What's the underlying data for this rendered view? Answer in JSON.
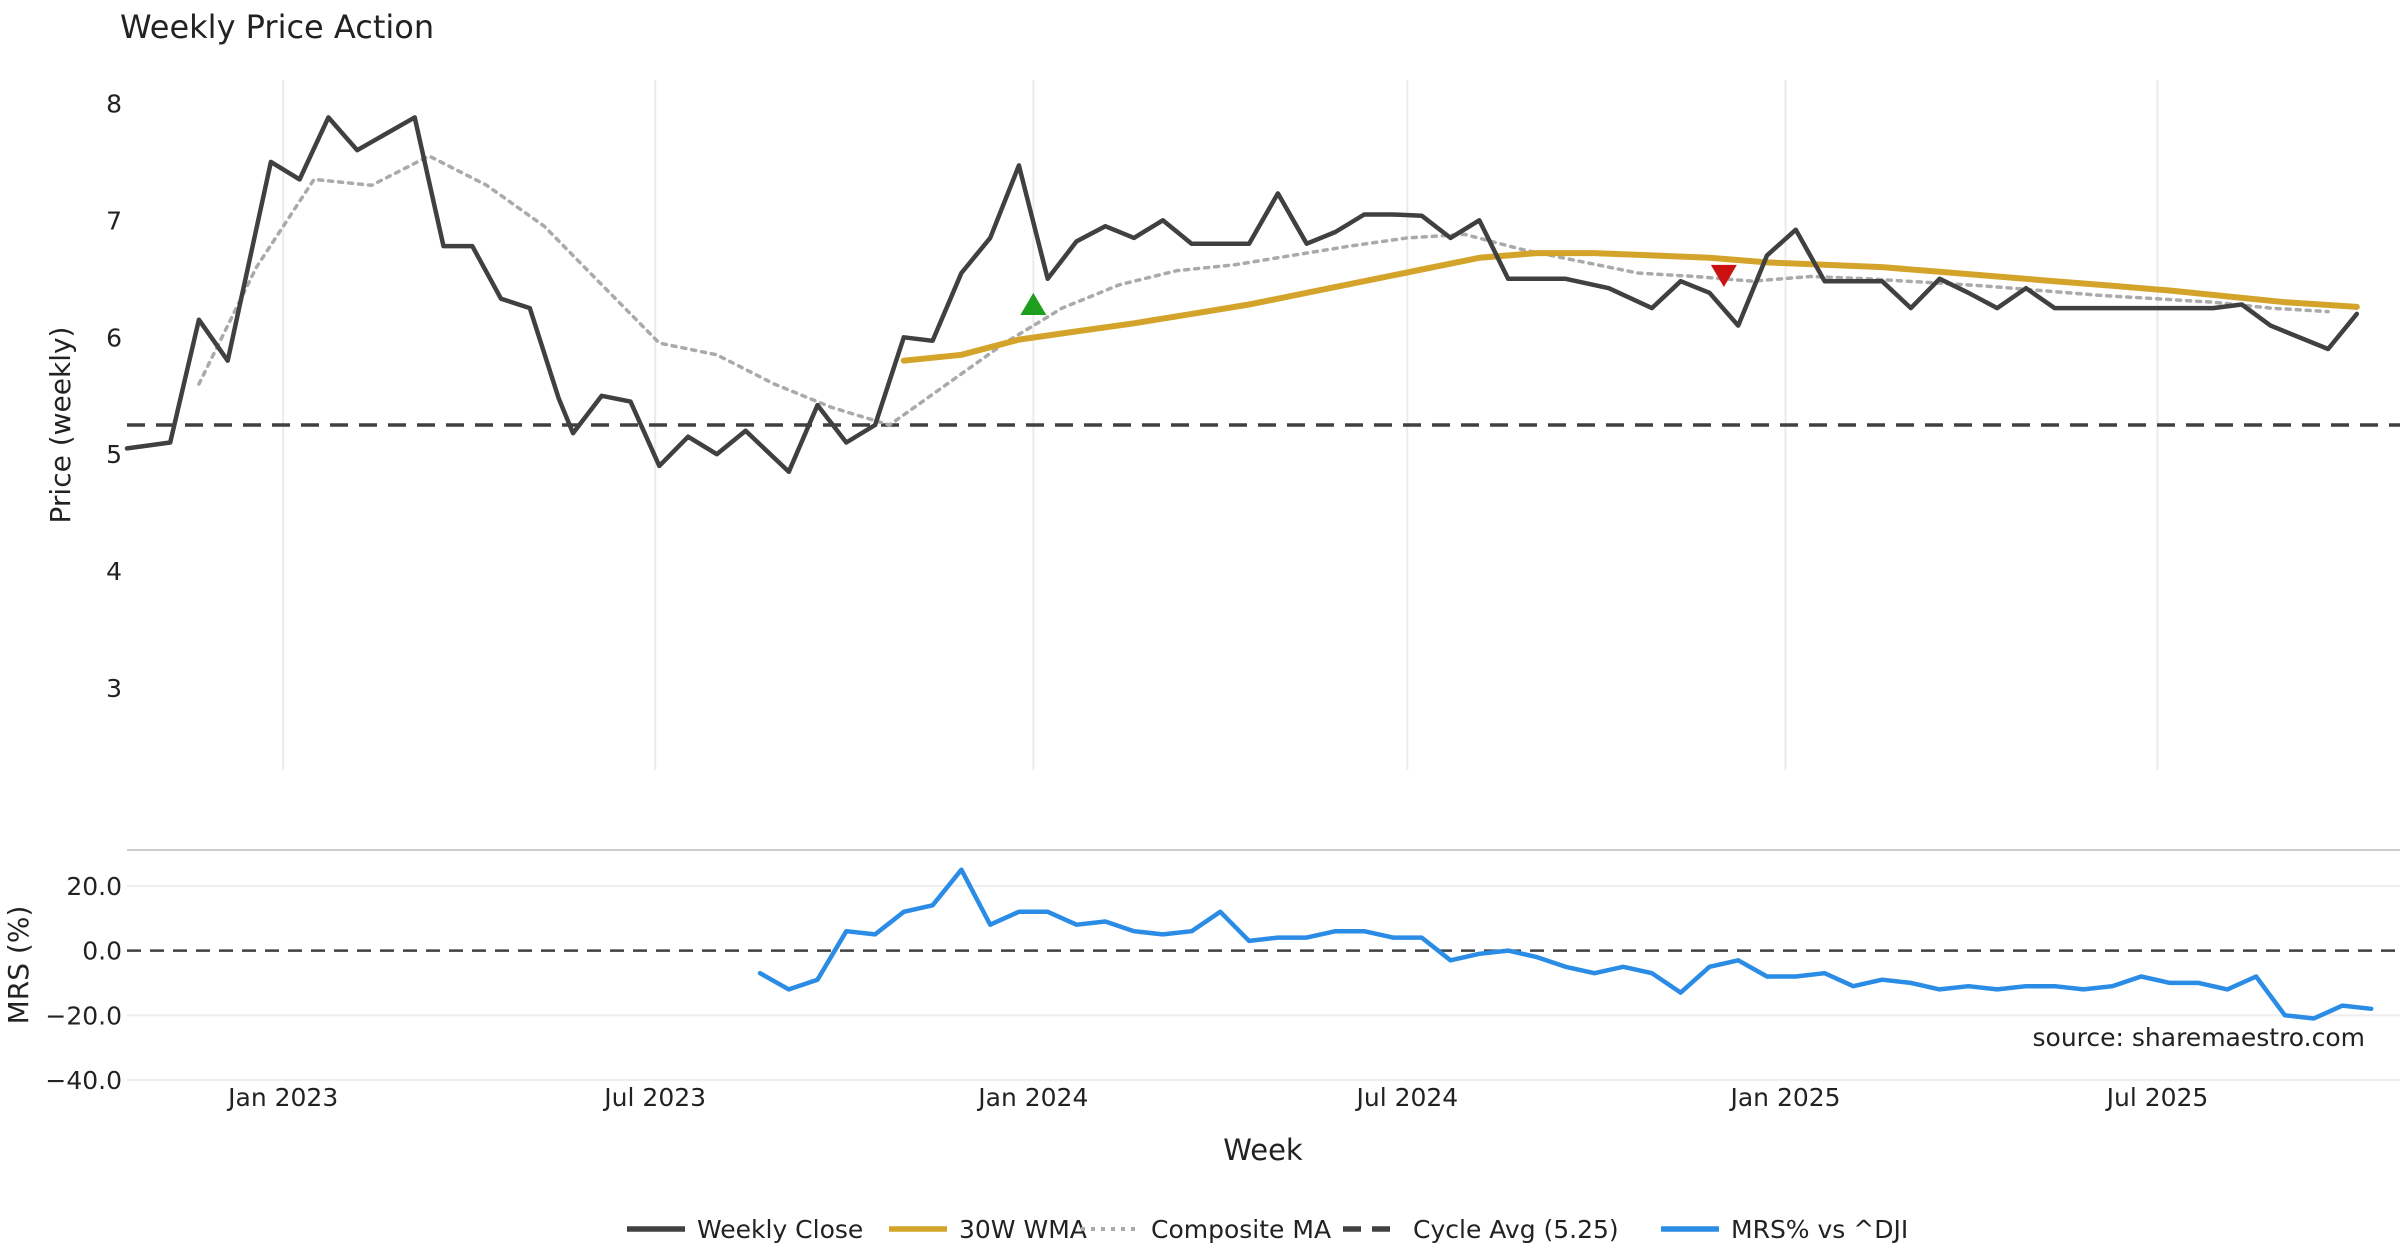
{
  "chart_data": {
    "type": "line",
    "title": "Weekly Price Action",
    "xlabel": "Week",
    "source_note": "source: sharemaestro.com",
    "x_ticks": [
      "Jan 2023",
      "Jul 2023",
      "Jan 2024",
      "Jul 2024",
      "Jan 2025",
      "Jul 2025"
    ],
    "x_range": [
      "2022-10-17",
      "2025-10-27"
    ],
    "price_panel": {
      "ylabel": "Price (weekly)",
      "ylim": [
        2.3,
        8.2
      ],
      "y_ticks": [
        3,
        4,
        5,
        6,
        7,
        8
      ],
      "cycle_avg": 5.25,
      "series": [
        {
          "name": "Weekly Close",
          "color": "#404040",
          "points": [
            [
              "2022-10-17",
              5.05
            ],
            [
              "2022-11-07",
              5.1
            ],
            [
              "2022-11-21",
              6.15
            ],
            [
              "2022-12-05",
              5.8
            ],
            [
              "2022-12-26",
              7.5
            ],
            [
              "2023-01-09",
              7.35
            ],
            [
              "2023-01-23",
              7.88
            ],
            [
              "2023-02-06",
              7.6
            ],
            [
              "2023-03-06",
              7.88
            ],
            [
              "2023-03-20",
              6.78
            ],
            [
              "2023-04-03",
              6.78
            ],
            [
              "2023-04-17",
              6.33
            ],
            [
              "2023-05-01",
              6.25
            ],
            [
              "2023-05-15",
              5.48
            ],
            [
              "2023-05-22",
              5.18
            ],
            [
              "2023-06-05",
              5.5
            ],
            [
              "2023-06-19",
              5.45
            ],
            [
              "2023-07-03",
              4.9
            ],
            [
              "2023-07-17",
              5.15
            ],
            [
              "2023-07-31",
              5.0
            ],
            [
              "2023-08-14",
              5.2
            ],
            [
              "2023-09-04",
              4.85
            ],
            [
              "2023-09-18",
              5.42
            ],
            [
              "2023-10-02",
              5.1
            ],
            [
              "2023-10-16",
              5.25
            ],
            [
              "2023-10-30",
              6.0
            ],
            [
              "2023-11-13",
              5.97
            ],
            [
              "2023-11-27",
              6.55
            ],
            [
              "2023-12-11",
              6.85
            ],
            [
              "2023-12-25",
              7.47
            ],
            [
              "2024-01-08",
              6.5
            ],
            [
              "2024-01-22",
              6.82
            ],
            [
              "2024-02-05",
              6.95
            ],
            [
              "2024-02-19",
              6.85
            ],
            [
              "2024-03-04",
              7.0
            ],
            [
              "2024-03-18",
              6.8
            ],
            [
              "2024-04-15",
              6.8
            ],
            [
              "2024-04-29",
              7.23
            ],
            [
              "2024-05-13",
              6.8
            ],
            [
              "2024-05-27",
              6.9
            ],
            [
              "2024-06-10",
              7.05
            ],
            [
              "2024-06-24",
              7.05
            ],
            [
              "2024-07-08",
              7.04
            ],
            [
              "2024-07-22",
              6.85
            ],
            [
              "2024-08-05",
              7.0
            ],
            [
              "2024-08-19",
              6.5
            ],
            [
              "2024-09-16",
              6.5
            ],
            [
              "2024-10-07",
              6.42
            ],
            [
              "2024-10-28",
              6.25
            ],
            [
              "2024-11-11",
              6.48
            ],
            [
              "2024-11-25",
              6.38
            ],
            [
              "2024-12-09",
              6.1
            ],
            [
              "2024-12-23",
              6.7
            ],
            [
              "2025-01-06",
              6.92
            ],
            [
              "2025-01-20",
              6.48
            ],
            [
              "2025-02-03",
              6.48
            ],
            [
              "2025-02-17",
              6.48
            ],
            [
              "2025-03-03",
              6.25
            ],
            [
              "2025-03-17",
              6.5
            ],
            [
              "2025-03-31",
              6.38
            ],
            [
              "2025-04-14",
              6.25
            ],
            [
              "2025-04-28",
              6.42
            ],
            [
              "2025-05-12",
              6.25
            ],
            [
              "2025-05-26",
              6.25
            ],
            [
              "2025-06-30",
              6.25
            ],
            [
              "2025-07-28",
              6.25
            ],
            [
              "2025-08-11",
              6.28
            ],
            [
              "2025-08-25",
              6.1
            ],
            [
              "2025-09-22",
              5.9
            ],
            [
              "2025-10-06",
              6.2
            ]
          ]
        },
        {
          "name": "30W WMA",
          "color": "#D4A42A",
          "points": [
            [
              "2023-10-30",
              5.8
            ],
            [
              "2023-11-27",
              5.85
            ],
            [
              "2023-12-25",
              5.98
            ],
            [
              "2024-01-22",
              6.05
            ],
            [
              "2024-02-19",
              6.12
            ],
            [
              "2024-03-18",
              6.2
            ],
            [
              "2024-04-15",
              6.28
            ],
            [
              "2024-05-13",
              6.38
            ],
            [
              "2024-06-10",
              6.48
            ],
            [
              "2024-07-08",
              6.58
            ],
            [
              "2024-08-05",
              6.68
            ],
            [
              "2024-09-02",
              6.72
            ],
            [
              "2024-09-30",
              6.72
            ],
            [
              "2024-10-28",
              6.7
            ],
            [
              "2024-11-25",
              6.68
            ],
            [
              "2024-12-23",
              6.64
            ],
            [
              "2025-01-20",
              6.62
            ],
            [
              "2025-02-17",
              6.6
            ],
            [
              "2025-03-17",
              6.56
            ],
            [
              "2025-04-14",
              6.52
            ],
            [
              "2025-05-12",
              6.48
            ],
            [
              "2025-06-09",
              6.44
            ],
            [
              "2025-07-07",
              6.4
            ],
            [
              "2025-08-04",
              6.35
            ],
            [
              "2025-09-01",
              6.3
            ],
            [
              "2025-10-06",
              6.26
            ]
          ]
        },
        {
          "name": "Composite MA",
          "color": "#AAAAAA",
          "points": [
            [
              "2022-11-21",
              5.6
            ],
            [
              "2022-12-19",
              6.6
            ],
            [
              "2023-01-16",
              7.35
            ],
            [
              "2023-02-13",
              7.3
            ],
            [
              "2023-03-13",
              7.55
            ],
            [
              "2023-04-10",
              7.3
            ],
            [
              "2023-05-08",
              6.95
            ],
            [
              "2023-06-05",
              6.45
            ],
            [
              "2023-07-03",
              5.95
            ],
            [
              "2023-07-31",
              5.85
            ],
            [
              "2023-08-28",
              5.6
            ],
            [
              "2023-09-25",
              5.4
            ],
            [
              "2023-10-23",
              5.25
            ],
            [
              "2023-11-20",
              5.6
            ],
            [
              "2023-12-18",
              5.95
            ],
            [
              "2024-01-15",
              6.25
            ],
            [
              "2024-02-12",
              6.45
            ],
            [
              "2024-03-11",
              6.57
            ],
            [
              "2024-04-08",
              6.62
            ],
            [
              "2024-05-06",
              6.7
            ],
            [
              "2024-06-03",
              6.78
            ],
            [
              "2024-07-01",
              6.85
            ],
            [
              "2024-07-29",
              6.88
            ],
            [
              "2024-08-26",
              6.75
            ],
            [
              "2024-09-23",
              6.65
            ],
            [
              "2024-10-21",
              6.55
            ],
            [
              "2024-11-18",
              6.52
            ],
            [
              "2024-12-16",
              6.48
            ],
            [
              "2025-01-13",
              6.52
            ],
            [
              "2025-02-10",
              6.5
            ],
            [
              "2025-03-10",
              6.47
            ],
            [
              "2025-04-07",
              6.44
            ],
            [
              "2025-05-05",
              6.4
            ],
            [
              "2025-06-02",
              6.36
            ],
            [
              "2025-06-30",
              6.33
            ],
            [
              "2025-07-28",
              6.3
            ],
            [
              "2025-08-25",
              6.25
            ],
            [
              "2025-09-22",
              6.22
            ]
          ]
        }
      ],
      "signals": [
        {
          "type": "buy",
          "date": "2024-01-01",
          "value": 6.28,
          "color": "#1E9E1E"
        },
        {
          "type": "sell",
          "date": "2024-12-02",
          "value": 6.53,
          "color": "#CC1111"
        }
      ]
    },
    "mrs_panel": {
      "ylabel": "MRS (%)",
      "ylim": [
        -40,
        28
      ],
      "y_ticks": [
        "20.0",
        "0.0",
        "−20.0",
        "−40.0"
      ],
      "y_tick_values": [
        20,
        0,
        -20,
        -40
      ],
      "series": {
        "name": "MRS% vs ^DJI",
        "color": "#2B8CE6",
        "points": [
          [
            "2023-08-21",
            -7
          ],
          [
            "2023-09-04",
            -12
          ],
          [
            "2023-09-18",
            -9
          ],
          [
            "2023-10-02",
            6
          ],
          [
            "2023-10-16",
            5
          ],
          [
            "2023-10-30",
            12
          ],
          [
            "2023-11-13",
            14
          ],
          [
            "2023-11-27",
            25
          ],
          [
            "2023-12-11",
            8
          ],
          [
            "2023-12-25",
            12
          ],
          [
            "2024-01-08",
            12
          ],
          [
            "2024-01-22",
            8
          ],
          [
            "2024-02-05",
            9
          ],
          [
            "2024-02-19",
            6
          ],
          [
            "2024-03-04",
            5
          ],
          [
            "2024-03-18",
            6
          ],
          [
            "2024-04-01",
            12
          ],
          [
            "2024-04-15",
            3
          ],
          [
            "2024-04-29",
            4
          ],
          [
            "2024-05-13",
            4
          ],
          [
            "2024-05-27",
            6
          ],
          [
            "2024-06-10",
            6
          ],
          [
            "2024-06-24",
            4
          ],
          [
            "2024-07-08",
            4
          ],
          [
            "2024-07-22",
            -3
          ],
          [
            "2024-08-05",
            -1
          ],
          [
            "2024-08-19",
            0
          ],
          [
            "2024-09-02",
            -2
          ],
          [
            "2024-09-16",
            -5
          ],
          [
            "2024-09-30",
            -7
          ],
          [
            "2024-10-14",
            -5
          ],
          [
            "2024-10-28",
            -7
          ],
          [
            "2024-11-11",
            -13
          ],
          [
            "2024-11-25",
            -5
          ],
          [
            "2024-12-09",
            -3
          ],
          [
            "2024-12-23",
            -8
          ],
          [
            "2025-01-06",
            -8
          ],
          [
            "2025-01-20",
            -7
          ],
          [
            "2025-02-03",
            -11
          ],
          [
            "2025-02-17",
            -9
          ],
          [
            "2025-03-03",
            -10
          ],
          [
            "2025-03-17",
            -12
          ],
          [
            "2025-03-31",
            -11
          ],
          [
            "2025-04-14",
            -12
          ],
          [
            "2025-04-28",
            -11
          ],
          [
            "2025-05-12",
            -11
          ],
          [
            "2025-05-26",
            -12
          ],
          [
            "2025-06-09",
            -11
          ],
          [
            "2025-06-23",
            -8
          ],
          [
            "2025-07-07",
            -10
          ],
          [
            "2025-07-21",
            -10
          ],
          [
            "2025-08-04",
            -12
          ],
          [
            "2025-08-18",
            -8
          ],
          [
            "2025-09-01",
            -20
          ],
          [
            "2025-09-15",
            -21
          ],
          [
            "2025-09-29",
            -17
          ],
          [
            "2025-10-13",
            -18
          ]
        ]
      }
    },
    "legend": {
      "placement": "bottom-center",
      "entries": [
        {
          "label": "Weekly Close",
          "color": "#404040",
          "style": "solid"
        },
        {
          "label": "30W WMA",
          "color": "#D4A42A",
          "style": "solid"
        },
        {
          "label": "Composite MA",
          "color": "#AAAAAA",
          "style": "dotted"
        },
        {
          "label": "Cycle Avg (5.25)",
          "color": "#404040",
          "style": "dashed"
        },
        {
          "label": "MRS% vs ^DJI",
          "color": "#2B8CE6",
          "style": "solid"
        }
      ]
    }
  }
}
